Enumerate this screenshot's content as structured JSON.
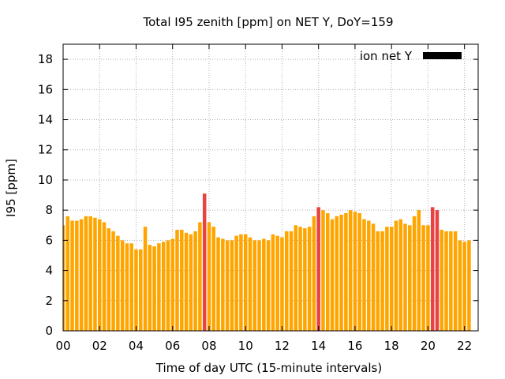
{
  "chart_data": {
    "type": "bar",
    "title": "Total I95 zenith [ppm] on NET Y, DoY=159",
    "xlabel": "Time of day UTC (15-minute intervals)",
    "ylabel": "I95 [ppm]",
    "xlim": [
      0,
      22.75
    ],
    "ylim": [
      0,
      19
    ],
    "x_ticks": [
      "00",
      "02",
      "04",
      "06",
      "08",
      "10",
      "12",
      "14",
      "16",
      "18",
      "20",
      "22"
    ],
    "y_ticks": [
      "0",
      "2",
      "4",
      "6",
      "8",
      "10",
      "12",
      "14",
      "16",
      "18"
    ],
    "grid": true,
    "legend": {
      "placement": "top-right",
      "entries": [
        {
          "label": "ion net Y",
          "color": "#000000"
        }
      ]
    },
    "colors": {
      "normal": "#FFA500",
      "highlight": "#E84343"
    },
    "bar_interval_hours": 0.25,
    "values": [
      7.0,
      7.6,
      7.3,
      7.3,
      7.4,
      7.6,
      7.6,
      7.5,
      7.4,
      7.2,
      6.8,
      6.6,
      6.3,
      6.0,
      5.8,
      5.8,
      5.4,
      5.4,
      6.9,
      5.7,
      5.6,
      5.8,
      5.9,
      6.0,
      6.1,
      6.7,
      6.7,
      6.5,
      6.4,
      6.6,
      7.2,
      9.1,
      7.2,
      6.9,
      6.2,
      6.1,
      6.0,
      6.0,
      6.3,
      6.4,
      6.4,
      6.2,
      6.0,
      6.0,
      6.1,
      6.0,
      6.4,
      6.3,
      6.2,
      6.6,
      6.6,
      7.0,
      6.9,
      6.8,
      6.9,
      7.6,
      8.2,
      8.0,
      7.8,
      7.4,
      7.6,
      7.7,
      7.8,
      8.0,
      7.9,
      7.8,
      7.4,
      7.3,
      7.1,
      6.6,
      6.6,
      6.9,
      6.9,
      7.3,
      7.4,
      7.1,
      7.0,
      7.6,
      8.0,
      7.0,
      7.0,
      8.2,
      8.0,
      6.7,
      6.6,
      6.6,
      6.6,
      6.0,
      5.9,
      6.0
    ],
    "highlighted_indices": [
      31,
      56,
      81,
      82
    ]
  }
}
